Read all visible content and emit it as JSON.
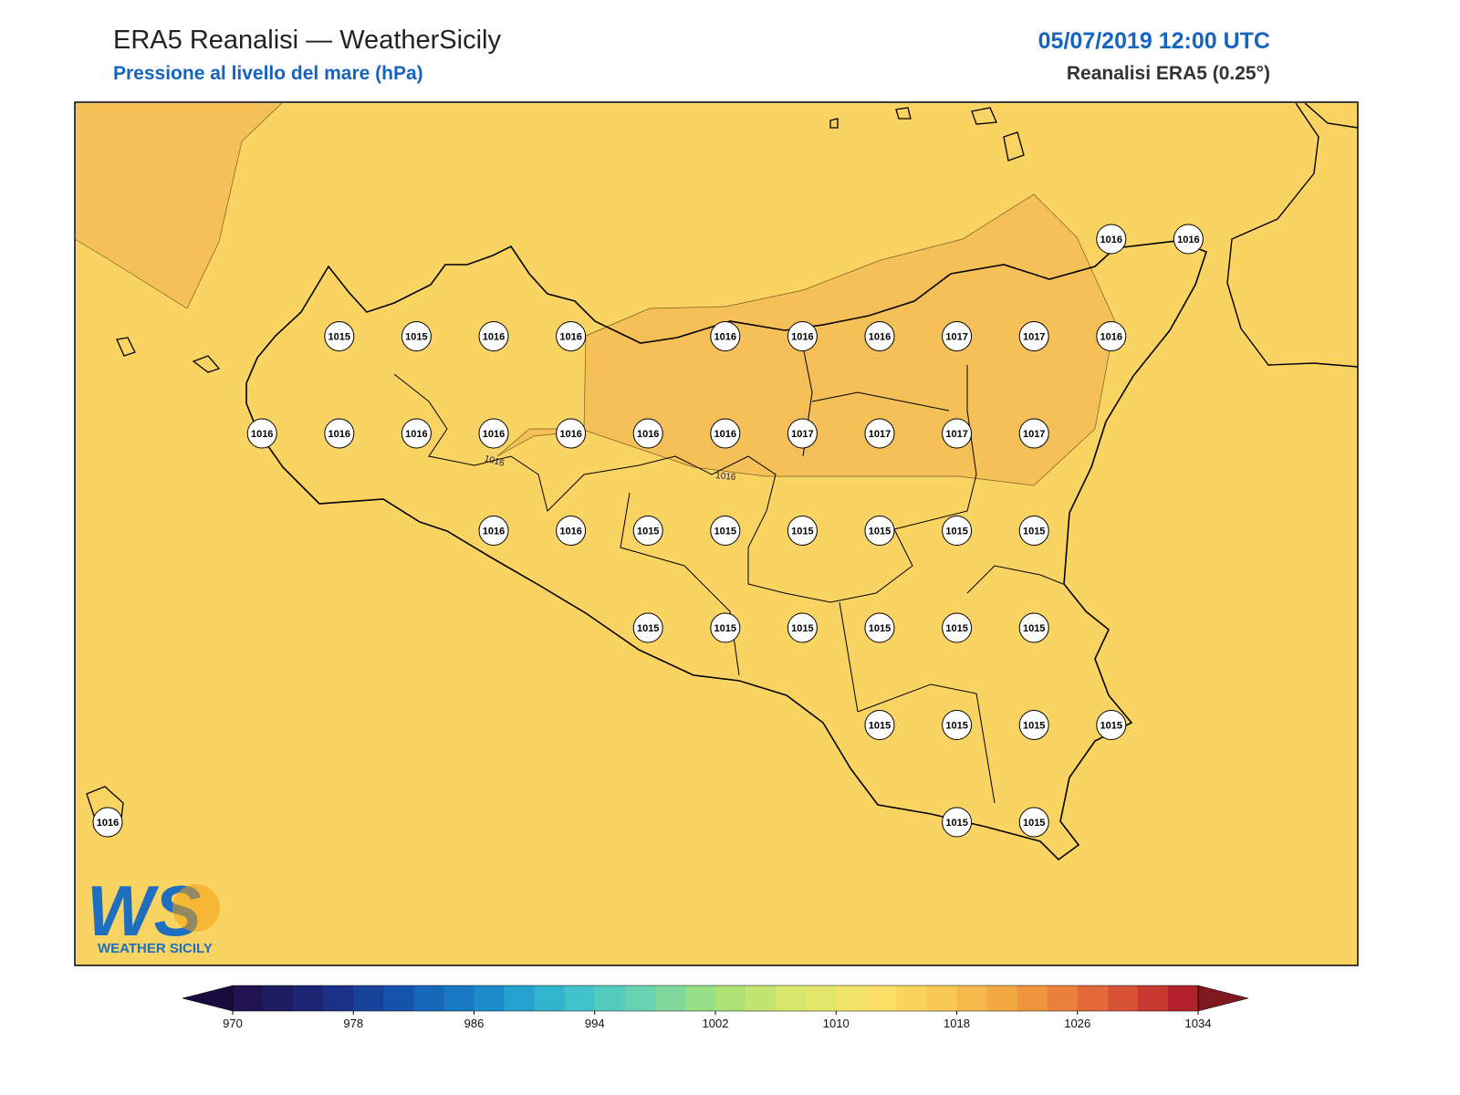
{
  "header": {
    "title": "ERA5 Reanalisi — WeatherSicily",
    "subtitle": "Pressione al livello del mare (hPa)",
    "datetime": "05/07/2019 12:00 UTC",
    "source": "Reanalisi ERA5 (0.25°)"
  },
  "stations": [
    1016,
    1016,
    1015,
    1015,
    1016,
    1016,
    1016,
    1016,
    1016,
    1017,
    1017,
    1016,
    1016,
    1016,
    1016,
    1016,
    1016,
    1016,
    1016,
    1017,
    1017,
    1017,
    1017,
    1016,
    1016,
    1015,
    1015,
    1015,
    1015,
    1015,
    1015,
    1015,
    1015,
    1015,
    1015,
    1015,
    1015,
    1015,
    1015,
    1015,
    1015,
    1016,
    1015,
    1015
  ],
  "contour_labels": [
    "1016",
    "1016"
  ],
  "colorbar": {
    "ticks": [
      970,
      978,
      986,
      994,
      1002,
      1010,
      1018,
      1026,
      1034
    ]
  },
  "logo": {
    "text": "WS",
    "subtitle": "WEATHER SICILY"
  }
}
